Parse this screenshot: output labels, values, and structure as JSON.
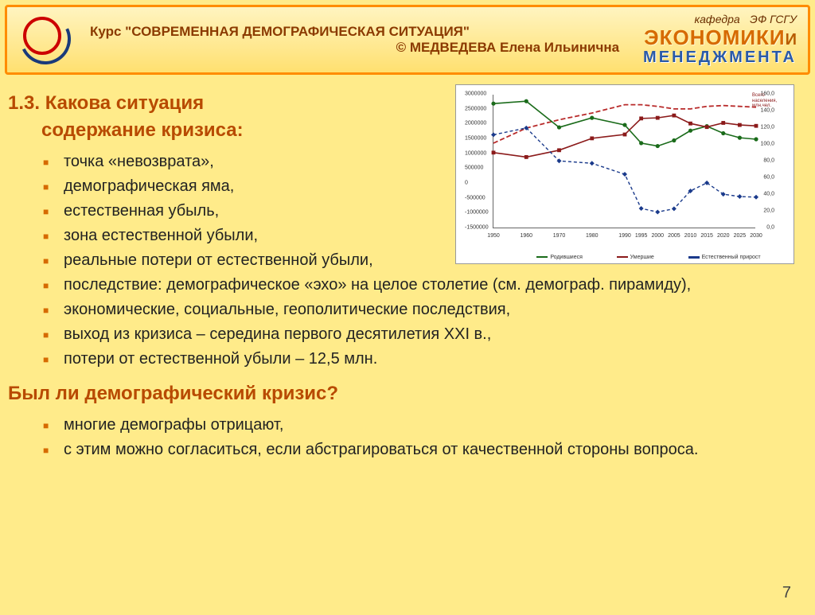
{
  "header": {
    "course_line": "Курс \"СОВРЕМЕННАЯ ДЕМОГРАФИЧЕСКАЯ СИТУАЦИЯ\"",
    "author_line": "© МЕДВЕДЕВА Елена Ильинична",
    "brand_kafedra": "кафедра",
    "brand_ef": "ЭФ ГСГУ",
    "brand_econ": "ЭКОНОМИКИ",
    "brand_i": "И",
    "brand_men": "МЕНЕДЖМЕНТА"
  },
  "section1": {
    "title_a": "1.3. Какова ситуация",
    "title_b": "содержание кризиса:"
  },
  "list1": [
    "точка «невозврата»,",
    "демографическая яма,",
    "естественная убыль,",
    "зона естественной убыли,",
    "реальные потери от естественной убыли,",
    "последствие: демографическое «эхо» на целое столетие (см. демограф. пирамиду),",
    "экономические, социальные, геополитические последствия,",
    "выход из кризиса – середина первого десятилетия XXI в.,",
    "потери от естественной убыли – 12,5 млн."
  ],
  "section2": {
    "title": "Был ли демографический кризис?"
  },
  "list2": [
    "многие демографы отрицают,",
    "с этим можно согласиться, если абстрагироваться от качественной стороны вопроса."
  ],
  "page_number": "7",
  "chart": {
    "type": "line",
    "background_color": "#ffffff",
    "xlim": [
      1950,
      2030
    ],
    "x_ticks": [
      1950,
      1960,
      1970,
      1980,
      1990,
      1995,
      2000,
      2005,
      2010,
      2015,
      2020,
      2025,
      2030
    ],
    "y_left": {
      "min": -1500000,
      "max": 3000000,
      "ticks": [
        -1500000,
        -1000000,
        -500000,
        0,
        500000,
        1000000,
        1500000,
        2000000,
        2500000,
        3000000
      ]
    },
    "y_right": {
      "min": 0,
      "max": 160,
      "ticks": [
        0,
        20,
        40,
        60,
        80,
        100,
        120,
        140,
        160
      ]
    },
    "legend_right": "Всего населения, млн.чел.",
    "legend_bottom": [
      "Родившиеся",
      "Умершие",
      "Естественный прирост"
    ],
    "series": {
      "born": {
        "color": "#1a6b1a",
        "marker": "circle",
        "line_width": 1.6,
        "y": [
          2700000,
          2780000,
          1900000,
          2220000,
          1980000,
          1370000,
          1270000,
          1460000,
          1790000,
          1940000,
          1700000,
          1550000,
          1500000
        ]
      },
      "died": {
        "color": "#8b1a1a",
        "marker": "square",
        "line_width": 1.6,
        "y": [
          1050000,
          900000,
          1130000,
          1530000,
          1660000,
          2200000,
          2220000,
          2300000,
          2030000,
          1910000,
          2050000,
          1980000,
          1950000
        ]
      },
      "natinc": {
        "color": "#1a3a8b",
        "marker": "diamond",
        "dash": "4 3",
        "line_width": 1.4,
        "y": [
          1650000,
          1880000,
          770000,
          690000,
          320000,
          -830000,
          -950000,
          -840000,
          -240000,
          30000,
          -350000,
          -430000,
          -450000
        ]
      },
      "pop_right": {
        "color": "#b82a2a",
        "dash": "6 3",
        "line_width": 1.8,
        "y": [
          102,
          120,
          130,
          138,
          148,
          148,
          146,
          143,
          143,
          146,
          147,
          146,
          145
        ]
      }
    }
  }
}
